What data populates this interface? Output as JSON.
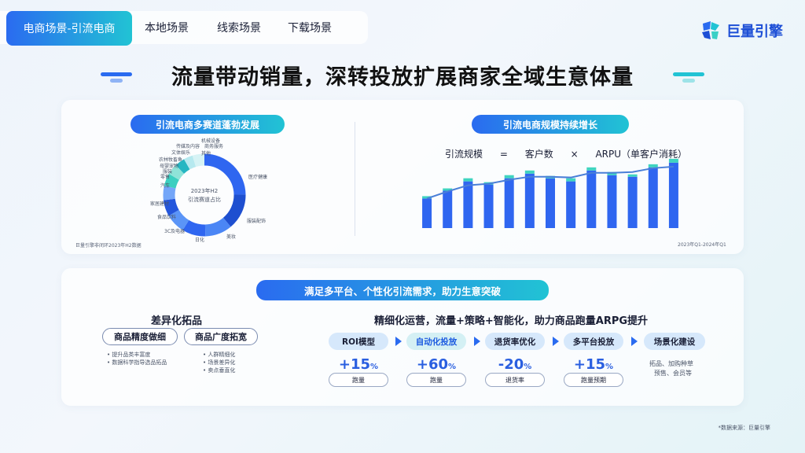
{
  "tabs": {
    "active": "电商场景-引流电商",
    "items": [
      "本地场景",
      "线索场景",
      "下载场景"
    ]
  },
  "logo": {
    "text": "巨量引擎"
  },
  "headline": "流量带动销量，深转投放扩展商家全域生意体量",
  "left_panel": {
    "title": "引流电商多赛道蓬勃发展",
    "center_line1": "2023年H2",
    "center_line2": "引流赛道占比",
    "labels": [
      "机械设备",
      "商务服务",
      "传媒及内容",
      "文体娱乐",
      "其他",
      "农林牧畜鱼",
      "母婴宠物",
      "服装",
      "零售",
      "汽车",
      "医疗健康",
      "家居建材",
      "食品饮料",
      "3C及电器",
      "日化",
      "美妆",
      "服装配饰"
    ],
    "source": "巨量引擎非闭环2023年H2数据"
  },
  "right_panel": {
    "title": "引流电商规模持续增长",
    "formula": [
      "引流规模",
      "=",
      "客户数",
      "×",
      "ARPU（单客户消耗）"
    ],
    "period": "2023年Q1-2024年Q1"
  },
  "chart_data": {
    "type": "bar",
    "title": "",
    "categories": [
      "1",
      "2",
      "3",
      "4",
      "5",
      "6",
      "7",
      "8",
      "9",
      "10",
      "11",
      "12",
      "13"
    ],
    "series": [
      {
        "values": [
          38,
          48,
          60,
          56,
          64,
          70,
          64,
          60,
          74,
          68,
          66,
          78,
          84
        ]
      },
      {
        "values": [
          3,
          3,
          4,
          3,
          4,
          4,
          3,
          4,
          4,
          4,
          3,
          4,
          5
        ]
      }
    ],
    "line": [
      38,
      47,
      55,
      57,
      62,
      66,
      66,
      65,
      71,
      71,
      72,
      77,
      79
    ],
    "ylim": [
      0,
      95
    ],
    "colors": {
      "bar": "#2f66f0",
      "cap": "#3fd4c0",
      "line": "#4a7fd8"
    }
  },
  "bottom": {
    "title": "满足多平台、个性化引流需求，助力生意突破",
    "diff": {
      "title": "差异化拓品",
      "btn1": "商品精度做细",
      "btn2": "商品广度拓宽",
      "b1_1": "提升品类丰富度",
      "b1_2": "数据科学指导选品拓品",
      "b2_1": "人群精细化",
      "b2_2": "场景差异化",
      "b2_3": "卖点垂直化"
    },
    "ops": {
      "title": "精细化运营，流量+策略+智能化，助力商品跑量ARPG提升",
      "steps": [
        "ROI模型",
        "自动化投放",
        "退货率优化",
        "多平台投放",
        "场景化建设"
      ],
      "m1": "+15",
      "m1p": "%",
      "l1": "跑量",
      "m2": "+60",
      "m2p": "%",
      "l2": "跑量",
      "m3": "-20",
      "m3p": "%",
      "l3": "退货率",
      "m4": "+15",
      "m4p": "%",
      "l4": "跑量预期",
      "extra1": "拓品、加购种草",
      "extra2": "预售、会员等"
    }
  },
  "footer_source": "*数据来源：巨量引擎"
}
